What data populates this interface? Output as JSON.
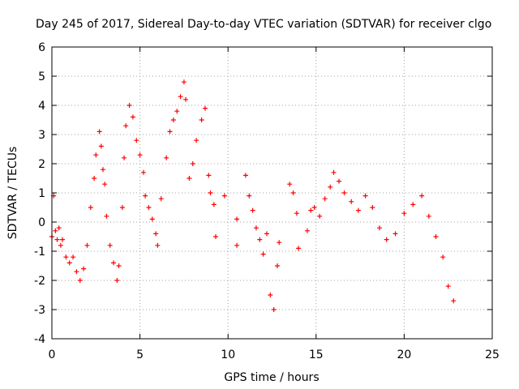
{
  "chart_data": {
    "type": "scatter",
    "title": "Day 245 of 2017, Sidereal Day-to-day VTEC variation (SDTVAR) for receiver clgo",
    "xlabel": "GPS time / hours",
    "ylabel": "SDTVAR / TECUs",
    "xlim": [
      0,
      25
    ],
    "ylim": [
      -4,
      6
    ],
    "xticks": [
      "0",
      "5",
      "10",
      "15",
      "20",
      "25"
    ],
    "yticks": [
      "-4",
      "-3",
      "-2",
      "-1",
      "0",
      "1",
      "2",
      "3",
      "4",
      "5",
      "6"
    ],
    "grid": true,
    "marker": "+",
    "series": [
      {
        "name": "SDTVAR",
        "color": "#ff0000",
        "x": [
          0.0,
          0.1,
          0.2,
          0.3,
          0.4,
          0.5,
          0.6,
          0.8,
          1.0,
          1.2,
          1.4,
          1.6,
          1.8,
          2.0,
          2.2,
          2.4,
          2.5,
          2.7,
          2.8,
          2.9,
          3.0,
          3.1,
          3.3,
          3.5,
          3.7,
          3.8,
          4.0,
          4.1,
          4.2,
          4.4,
          4.6,
          4.8,
          5.0,
          5.2,
          5.3,
          5.5,
          5.7,
          5.9,
          6.0,
          6.2,
          6.5,
          6.7,
          6.9,
          7.1,
          7.3,
          7.5,
          7.6,
          7.8,
          8.0,
          8.2,
          8.5,
          8.7,
          8.9,
          9.0,
          9.2,
          9.3,
          9.8,
          10.5,
          10.5,
          11.0,
          11.2,
          11.4,
          11.6,
          11.8,
          12.0,
          12.2,
          12.4,
          12.6,
          12.8,
          12.9,
          13.5,
          13.7,
          13.9,
          14.0,
          14.5,
          14.7,
          14.9,
          15.2,
          15.5,
          15.8,
          16.0,
          16.3,
          16.6,
          17.0,
          17.4,
          17.8,
          18.2,
          18.6,
          19.0,
          19.5,
          20.0,
          20.5,
          21.0,
          21.4,
          21.8,
          22.2,
          22.5,
          22.8
        ],
        "y": [
          -0.5,
          0.9,
          -0.3,
          -0.6,
          -0.2,
          -0.8,
          -0.6,
          -1.2,
          -1.4,
          -1.2,
          -1.7,
          -2.0,
          -1.6,
          -0.8,
          0.5,
          1.5,
          2.3,
          3.1,
          2.6,
          1.8,
          1.3,
          0.2,
          -0.8,
          -1.4,
          -2.0,
          -1.5,
          0.5,
          2.2,
          3.3,
          4.0,
          3.6,
          2.8,
          2.3,
          1.7,
          0.9,
          0.5,
          0.1,
          -0.4,
          -0.8,
          0.8,
          2.2,
          3.1,
          3.5,
          3.8,
          4.3,
          4.8,
          4.2,
          1.5,
          2.0,
          2.8,
          3.5,
          3.9,
          1.6,
          1.0,
          0.6,
          -0.5,
          0.9,
          0.1,
          -0.8,
          1.6,
          0.9,
          0.4,
          -0.2,
          -0.6,
          -1.1,
          -0.4,
          -2.5,
          -3.0,
          -1.5,
          -0.7,
          1.3,
          1.0,
          0.3,
          -0.9,
          -0.3,
          0.4,
          0.5,
          0.2,
          0.8,
          1.2,
          1.7,
          1.4,
          1.0,
          0.7,
          0.4,
          0.9,
          0.5,
          -0.2,
          -0.6,
          -0.4,
          0.3,
          0.6,
          0.9,
          0.2,
          -0.5,
          -1.2,
          -2.2,
          -2.7
        ]
      }
    ]
  }
}
